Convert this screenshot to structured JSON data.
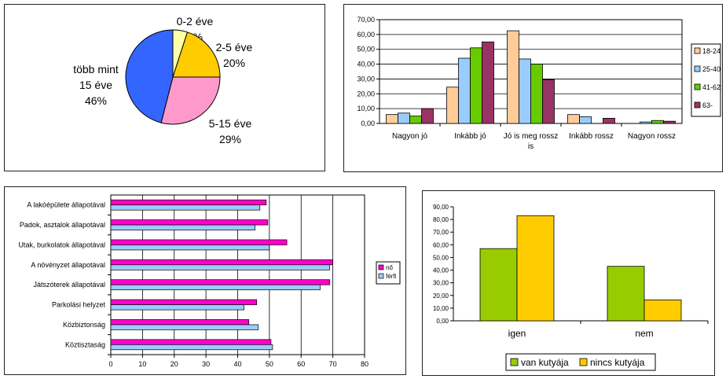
{
  "chart_data": [
    {
      "type": "pie",
      "slices": [
        {
          "label": [
            "0-2 éve",
            "5%"
          ],
          "value": 5,
          "color": "#ffffa8"
        },
        {
          "label": [
            "2-5 éve",
            "20%"
          ],
          "value": 20,
          "color": "#ffcc00"
        },
        {
          "label": [
            "5-15 éve",
            "29%"
          ],
          "value": 29,
          "color": "#ff99cc"
        },
        {
          "label": [
            "több mint",
            "15 éve",
            "46%"
          ],
          "value": 46,
          "color": "#3366ff"
        }
      ]
    },
    {
      "type": "bar",
      "categories": [
        [
          "Nagyon jó"
        ],
        [
          "Inkább jó"
        ],
        [
          "Jó is meg rossz",
          "is"
        ],
        [
          "Inkább rossz"
        ],
        [
          "Nagyon rossz"
        ]
      ],
      "series": [
        {
          "name": "18-24",
          "color": "#ffcc99",
          "values": [
            6,
            24.5,
            62.5,
            6,
            0
          ]
        },
        {
          "name": "25-40",
          "color": "#99ccff",
          "values": [
            7,
            44,
            43.5,
            4.5,
            1
          ]
        },
        {
          "name": "41-62",
          "color": "#66cc00",
          "values": [
            5,
            51,
            40,
            0,
            2
          ]
        },
        {
          "name": "63-",
          "color": "#993366",
          "values": [
            10,
            55,
            29.5,
            3.5,
            1.5
          ]
        }
      ],
      "ylim": [
        0,
        70
      ],
      "yticks": [
        "0,00",
        "10,00",
        "20,00",
        "30,00",
        "40,00",
        "50,00",
        "60,00",
        "70,00"
      ],
      "legend_position": "right",
      "grid": true
    },
    {
      "type": "bar",
      "orientation": "horizontal",
      "categories": [
        "A lakóépülete állapotával",
        "Padok, asztalok állapotával",
        "Utak, burkolatok állapotával",
        "A növényzet állapotával",
        "Játszóterek állapotával",
        "Parkolási helyzet",
        "Közbiztonság",
        "Köztisztaság"
      ],
      "series": [
        {
          "name": "nő",
          "color": "#ff00cc",
          "values": [
            49,
            49.5,
            55.5,
            70,
            69,
            46,
            43.5,
            50.5
          ]
        },
        {
          "name": "férfi",
          "color": "#99ccff",
          "values": [
            47,
            45.5,
            50,
            69,
            66,
            42,
            46.5,
            51
          ]
        }
      ],
      "xlim": [
        0,
        80
      ],
      "xticks": [
        "0",
        "10",
        "20",
        "30",
        "40",
        "50",
        "60",
        "70",
        "80"
      ],
      "legend_position": "right",
      "grid": true
    },
    {
      "type": "bar",
      "categories": [
        "igen",
        "nem"
      ],
      "series": [
        {
          "name": "van kutyája",
          "color": "#99cc00",
          "values": [
            57,
            43
          ]
        },
        {
          "name": "nincs kutyája",
          "color": "#ffcc00",
          "values": [
            83,
            16.5
          ]
        }
      ],
      "ylim": [
        0,
        90
      ],
      "yticks": [
        "0,00",
        "10,00",
        "20,00",
        "30,00",
        "40,00",
        "50,00",
        "60,00",
        "70,00",
        "80,00",
        "90,00"
      ],
      "legend_position": "bottom",
      "grid": false
    }
  ]
}
